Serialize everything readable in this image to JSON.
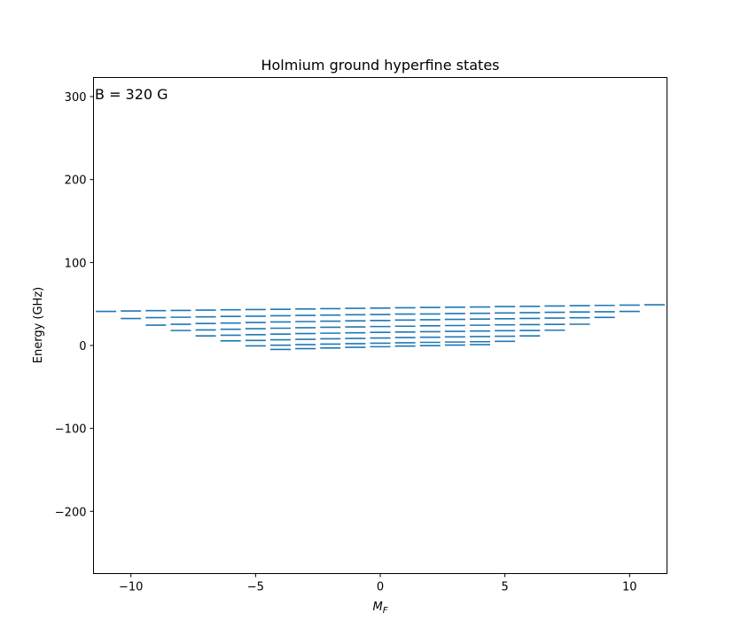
{
  "chart_data": {
    "type": "scatter",
    "marker": "horizontal-dash",
    "title": "Holmium ground hyperfine states",
    "xlabel": "M",
    "xlabel_sub": "F",
    "ylabel": "Energy (GHz)",
    "annotation": "B = 320 G",
    "xlim": [
      -11.5,
      11.5
    ],
    "ylim": [
      -275,
      323
    ],
    "xticks": [
      -10,
      -5,
      0,
      5,
      10
    ],
    "xtick_labels": [
      "−10",
      "−5",
      "0",
      "5",
      "10"
    ],
    "yticks": [
      300,
      200,
      100,
      0,
      -100,
      -200
    ],
    "ytick_labels": [
      "300",
      "200",
      "100",
      "0",
      "−100",
      "−200"
    ],
    "grid": false,
    "color": "#1f77b4",
    "series": [
      {
        "x": [
          -11,
          -10,
          -9,
          -8,
          -7,
          -6,
          -5,
          -4,
          -3,
          -2,
          -1,
          0,
          1,
          2,
          3,
          4,
          5,
          6,
          7,
          8,
          9,
          10,
          11
        ],
        "values": [
          41,
          41.5,
          42,
          42.2,
          42.6,
          43,
          43.3,
          43.6,
          44,
          44.4,
          44.8,
          45,
          45.4,
          45.8,
          46.1,
          46.4,
          46.9,
          47.2,
          47.6,
          48,
          48.3,
          48.6,
          49
        ]
      },
      {
        "x": [
          -10,
          -9,
          -8,
          -7,
          -6,
          -5,
          -4,
          -3,
          -2,
          -1,
          0,
          1,
          2,
          3,
          4,
          5,
          6,
          7,
          8,
          9,
          10
        ],
        "values": [
          32.5,
          33.5,
          34,
          34.5,
          35,
          35.3,
          35.8,
          36.2,
          36.6,
          37,
          37.3,
          37.8,
          38,
          38.5,
          38.8,
          39.2,
          39.6,
          40,
          40.3,
          40.6,
          41
        ]
      },
      {
        "x": [
          -9,
          -8,
          -7,
          -6,
          -5,
          -4,
          -3,
          -2,
          -1,
          0,
          1,
          2,
          3,
          4,
          5,
          6,
          7,
          8,
          9
        ],
        "values": [
          24.5,
          25.5,
          26.5,
          27,
          27.7,
          28.3,
          28.8,
          29.3,
          29.7,
          30.1,
          30.6,
          31,
          31.4,
          31.8,
          32.2,
          32.6,
          33,
          33.4,
          33.8
        ]
      },
      {
        "x": [
          -8,
          -7,
          -6,
          -5,
          -4,
          -3,
          -2,
          -1,
          0,
          1,
          2,
          3,
          4,
          5,
          6,
          7,
          8
        ],
        "values": [
          18,
          18.7,
          19.5,
          20.2,
          20.8,
          21.4,
          21.9,
          22.3,
          22.8,
          23.2,
          23.7,
          24,
          24.4,
          24.8,
          25.1,
          25.4,
          25.6
        ]
      },
      {
        "x": [
          -7,
          -6,
          -5,
          -4,
          -3,
          -2,
          -1,
          0,
          1,
          2,
          3,
          4,
          5,
          6,
          7
        ],
        "values": [
          11.5,
          12.3,
          13,
          13.7,
          14.3,
          14.8,
          15.3,
          15.8,
          16.2,
          16.6,
          17,
          17.4,
          17.8,
          18.1,
          18.4
        ]
      },
      {
        "x": [
          -6,
          -5,
          -4,
          -3,
          -2,
          -1,
          0,
          1,
          2,
          3,
          4,
          5,
          6
        ],
        "values": [
          5.5,
          6,
          6.8,
          7.4,
          8,
          8.5,
          9,
          9.5,
          9.9,
          10.3,
          10.7,
          11.1,
          11.5
        ]
      },
      {
        "x": [
          -5,
          -4,
          -3,
          -2,
          -1,
          0,
          1,
          2,
          3,
          4,
          5
        ],
        "values": [
          -0.5,
          0.3,
          1,
          1.6,
          2.2,
          2.7,
          3.2,
          3.7,
          4.1,
          4.5,
          5
        ]
      },
      {
        "x": [
          -4,
          -3,
          -2,
          -1,
          0,
          1,
          2,
          3,
          4
        ],
        "values": [
          -4.8,
          -3.8,
          -3,
          -2.2,
          -1.5,
          -0.8,
          -0.2,
          0.4,
          1
        ]
      }
    ]
  }
}
